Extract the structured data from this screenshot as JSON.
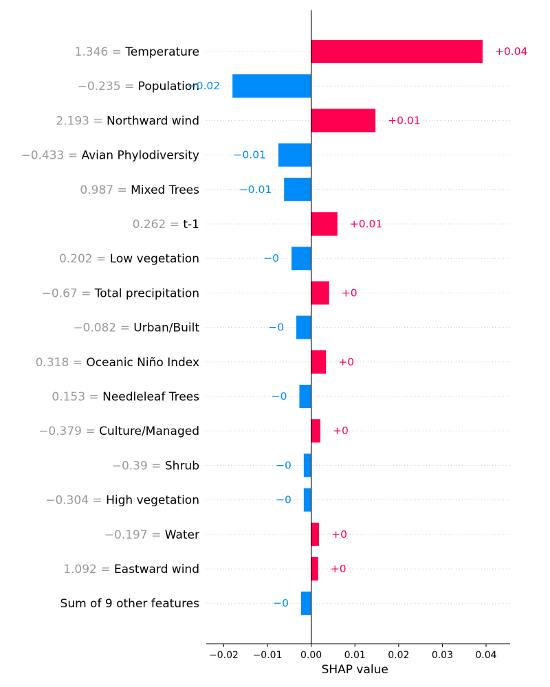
{
  "chart_data": {
    "type": "bar",
    "orientation": "horizontal",
    "xlabel": "SHAP value",
    "xlim": [
      -0.024,
      0.0455
    ],
    "xticks": [
      -0.02,
      -0.01,
      0.0,
      0.01,
      0.02,
      0.03,
      0.04
    ],
    "xtick_labels": [
      "−0.02",
      "−0.01",
      "0.00",
      "0.01",
      "0.02",
      "0.03",
      "0.04"
    ],
    "baseline": 0,
    "colors": {
      "positive": "#ff0051",
      "negative": "#008bfb"
    },
    "grid": true,
    "features": [
      {
        "value": "1.346",
        "name": "Temperature",
        "shap": 0.0392,
        "label": "+0.04"
      },
      {
        "value": "−0.235",
        "name": "Population",
        "shap": -0.018,
        "label": "−0.02"
      },
      {
        "value": "2.193",
        "name": "Northward wind",
        "shap": 0.0147,
        "label": "+0.01"
      },
      {
        "value": "−0.433",
        "name": "Avian Phylodiversity",
        "shap": -0.0075,
        "label": "−0.01"
      },
      {
        "value": "0.987",
        "name": "Mixed Trees",
        "shap": -0.0062,
        "label": "−0.01"
      },
      {
        "value": "0.262",
        "name": "t-1",
        "shap": 0.006,
        "label": "+0.01"
      },
      {
        "value": "0.202",
        "name": "Low vegetation",
        "shap": -0.0045,
        "label": "−0"
      },
      {
        "value": "−0.67",
        "name": "Total precipitation",
        "shap": 0.0041,
        "label": "+0"
      },
      {
        "value": "−0.082",
        "name": "Urban/Built",
        "shap": -0.0034,
        "label": "−0"
      },
      {
        "value": "0.318",
        "name": "Oceanic Niño Index",
        "shap": 0.0034,
        "label": "+0"
      },
      {
        "value": "0.153",
        "name": "Needleleaf Trees",
        "shap": -0.0027,
        "label": "−0"
      },
      {
        "value": "−0.379",
        "name": "Culture/Managed",
        "shap": 0.0021,
        "label": "+0"
      },
      {
        "value": "−0.39",
        "name": "Shrub",
        "shap": -0.0017,
        "label": "−0"
      },
      {
        "value": "−0.304",
        "name": "High vegetation",
        "shap": -0.0017,
        "label": "−0"
      },
      {
        "value": "−0.197",
        "name": "Water",
        "shap": 0.0018,
        "label": "+0"
      },
      {
        "value": "1.092",
        "name": "Eastward wind",
        "shap": 0.0016,
        "label": "+0"
      },
      {
        "value": "",
        "name": "Sum of 9 other features",
        "shap": -0.0023,
        "label": "−0"
      }
    ]
  }
}
